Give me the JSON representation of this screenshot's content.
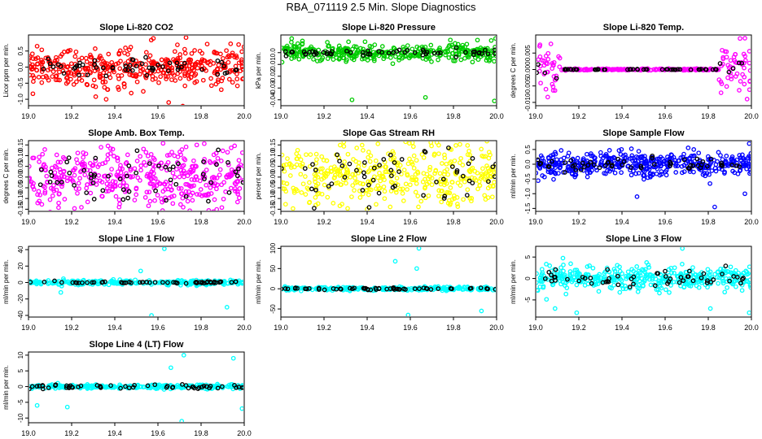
{
  "title": "RBA_071119  2.5 Min. Slope Diagnostics",
  "colors": {
    "black": "#000000",
    "red": "#ff0000",
    "green": "#00cc00",
    "magenta": "#ff00ff",
    "yellow": "#ffff00",
    "blue": "#0000ff",
    "cyan": "#00ffff"
  },
  "chart_data": [
    {
      "type": "scatter",
      "title": "Slope Li-820 CO2",
      "xlabel": "",
      "ylabel": "Licor ppm per min.",
      "xlim": [
        19.0,
        20.0
      ],
      "ylim": [
        -1.2,
        1.0
      ],
      "xticks": [
        19.0,
        19.2,
        19.4,
        19.6,
        19.8,
        20.0
      ],
      "xticklabels": [
        "19.0",
        "19.2",
        "19.4",
        "19.6",
        "19.8",
        "20.0"
      ],
      "yticks": [
        -1.0,
        -0.5,
        0.0,
        0.5
      ],
      "yticklabels": [
        "-1.0",
        "-0.5",
        "0.0",
        "0.5"
      ],
      "series": [
        {
          "name": "points",
          "color": "#ff0000",
          "spread": 0.3,
          "n": 420,
          "extreme_points": [
            {
              "x": 19.73,
              "y": 0.92
            },
            {
              "x": 19.65,
              "y": -1.1
            },
            {
              "x": 19.36,
              "y": -1.0
            },
            {
              "x": 19.04,
              "y": 0.65
            }
          ]
        },
        {
          "name": "reference",
          "color": "#000000",
          "spread": 0.13,
          "n": 55
        }
      ]
    },
    {
      "type": "scatter",
      "title": "Slope Li-820 Pressure",
      "xlabel": "",
      "ylabel": "kPa per min.",
      "xlim": [
        19.0,
        20.0
      ],
      "ylim": [
        -0.045,
        0.015
      ],
      "xticks": [
        19.0,
        19.2,
        19.4,
        19.6,
        19.8,
        20.0
      ],
      "xticklabels": [
        "19.0",
        "19.2",
        "19.4",
        "19.6",
        "19.8",
        "20.0"
      ],
      "yticks": [
        -0.04,
        -0.03,
        -0.02,
        -0.01,
        0.0
      ],
      "yticklabels": [
        "-0.04",
        "-0.03",
        "-0.02",
        "-0.01",
        "0.0"
      ],
      "series": [
        {
          "name": "points",
          "color": "#00cc00",
          "spread": 0.004,
          "n": 380,
          "extreme_points": [
            {
              "x": 19.33,
              "y": -0.04
            },
            {
              "x": 19.67,
              "y": -0.038
            },
            {
              "x": 19.99,
              "y": -0.041
            },
            {
              "x": 19.05,
              "y": 0.012
            }
          ]
        },
        {
          "name": "reference",
          "color": "#000000",
          "spread": 0.0015,
          "n": 55
        }
      ]
    },
    {
      "type": "scatter",
      "title": "Slope Li-820 Temp.",
      "xlabel": "",
      "ylabel": "degrees C per min.",
      "xlim": [
        19.0,
        20.0
      ],
      "ylim": [
        -0.011,
        0.0105
      ],
      "xticks": [
        19.0,
        19.2,
        19.4,
        19.6,
        19.8,
        20.0
      ],
      "xticklabels": [
        "19.0",
        "19.2",
        "19.4",
        "19.6",
        "19.8",
        "20.0"
      ],
      "yticks": [
        -0.01,
        -0.005,
        0.0,
        0.005
      ],
      "yticklabels": [
        "-0.010",
        "-0.005",
        "0.000",
        "0.005"
      ],
      "series": [
        {
          "name": "points",
          "color": "#ff00ff",
          "spread": 0.004,
          "n": 300,
          "extreme_points": [
            {
              "x": 19.97,
              "y": 0.0095
            },
            {
              "x": 19.98,
              "y": -0.009
            },
            {
              "x": 19.02,
              "y": 0.0075
            }
          ]
        },
        {
          "name": "reference",
          "color": "#000000",
          "spread": 0.0015,
          "n": 55
        }
      ]
    },
    {
      "type": "scatter",
      "title": "Slope Amb. Box Temp.",
      "xlabel": "",
      "ylabel": "degrees C per min.",
      "xlim": [
        19.0,
        20.0
      ],
      "ylim": [
        -0.16,
        0.17
      ],
      "xticks": [
        19.0,
        19.2,
        19.4,
        19.6,
        19.8,
        20.0
      ],
      "xticklabels": [
        "19.0",
        "19.2",
        "19.4",
        "19.6",
        "19.8",
        "20.0"
      ],
      "yticks": [
        -0.15,
        -0.1,
        -0.05,
        0.0,
        0.05,
        0.1,
        0.15
      ],
      "yticklabels": [
        "-0.15",
        "-0.10",
        "-0.05",
        "0.00",
        "0.05",
        "0.10",
        "0.15"
      ],
      "series": [
        {
          "name": "points",
          "color": "#ff00ff",
          "spread": 0.07,
          "n": 430,
          "extreme_points": [
            {
              "x": 19.78,
              "y": 0.15
            },
            {
              "x": 19.42,
              "y": -0.14
            }
          ]
        },
        {
          "name": "reference",
          "color": "#000000",
          "spread": 0.05,
          "n": 55
        }
      ]
    },
    {
      "type": "scatter",
      "title": "Slope Gas Stream RH",
      "xlabel": "",
      "ylabel": "percent per min.",
      "xlim": [
        19.0,
        20.0
      ],
      "ylim": [
        -0.16,
        0.17
      ],
      "xticks": [
        19.0,
        19.2,
        19.4,
        19.6,
        19.8,
        20.0
      ],
      "xticklabels": [
        "19.0",
        "19.2",
        "19.4",
        "19.6",
        "19.8",
        "20.0"
      ],
      "yticks": [
        -0.15,
        -0.1,
        -0.05,
        0.0,
        0.05,
        0.1,
        0.15
      ],
      "yticklabels": [
        "-0.15",
        "-0.10",
        "-0.05",
        "0.00",
        "0.05",
        "0.10",
        "0.15"
      ],
      "series": [
        {
          "name": "points",
          "color": "#ffff00",
          "spread": 0.08,
          "n": 430,
          "extreme_points": [
            {
              "x": 19.61,
              "y": 0.16
            },
            {
              "x": 19.4,
              "y": -0.15
            }
          ]
        },
        {
          "name": "reference",
          "color": "#000000",
          "spread": 0.07,
          "n": 55
        }
      ]
    },
    {
      "type": "scatter",
      "title": "Slope Sample Flow",
      "xlabel": "",
      "ylabel": "ml/min per min.",
      "xlim": [
        19.0,
        20.0
      ],
      "ylim": [
        -1.6,
        0.8
      ],
      "xticks": [
        19.0,
        19.2,
        19.4,
        19.6,
        19.8,
        20.0
      ],
      "xticklabels": [
        "19.0",
        "19.2",
        "19.4",
        "19.6",
        "19.8",
        "20.0"
      ],
      "yticks": [
        -1.5,
        -1.0,
        -0.5,
        0.0,
        0.5
      ],
      "yticklabels": [
        "-1.5",
        "-1.0",
        "-0.5",
        "0.0",
        "0.5"
      ],
      "series": [
        {
          "name": "points",
          "color": "#0000ff",
          "spread": 0.2,
          "n": 450,
          "extreme_points": [
            {
              "x": 19.83,
              "y": -1.45
            },
            {
              "x": 19.47,
              "y": -1.1
            },
            {
              "x": 19.97,
              "y": -1.0
            },
            {
              "x": 19.99,
              "y": 0.7
            }
          ]
        },
        {
          "name": "reference",
          "color": "#000000",
          "spread": 0.12,
          "n": 55
        }
      ]
    },
    {
      "type": "scatter",
      "title": "Slope Line 1 Flow",
      "xlabel": "",
      "ylabel": "ml/min per min.",
      "xlim": [
        19.0,
        20.0
      ],
      "ylim": [
        -42,
        44
      ],
      "xticks": [
        19.0,
        19.2,
        19.4,
        19.6,
        19.8,
        20.0
      ],
      "xticklabels": [
        "19.0",
        "19.2",
        "19.4",
        "19.6",
        "19.8",
        "20.0"
      ],
      "yticks": [
        -40,
        -20,
        0,
        20,
        40
      ],
      "yticklabels": [
        "-40",
        "-20",
        "0",
        "20",
        "40"
      ],
      "series": [
        {
          "name": "points",
          "color": "#00ffff",
          "spread": 1.5,
          "n": 260,
          "extreme_points": [
            {
              "x": 19.63,
              "y": 41
            },
            {
              "x": 19.57,
              "y": -40
            },
            {
              "x": 19.92,
              "y": -30
            },
            {
              "x": 19.52,
              "y": 14
            },
            {
              "x": 19.15,
              "y": -12
            }
          ]
        },
        {
          "name": "reference",
          "color": "#000000",
          "spread": 0.6,
          "n": 55
        }
      ]
    },
    {
      "type": "scatter",
      "title": "Slope Line 2 Flow",
      "xlabel": "",
      "ylabel": "ml/min per min.",
      "xlim": [
        19.0,
        20.0
      ],
      "ylim": [
        -70,
        105
      ],
      "xticks": [
        19.0,
        19.2,
        19.4,
        19.6,
        19.8,
        20.0
      ],
      "xticklabels": [
        "19.0",
        "19.2",
        "19.4",
        "19.6",
        "19.8",
        "20.0"
      ],
      "yticks": [
        -50,
        0,
        50,
        100
      ],
      "yticklabels": [
        "-50",
        "0",
        "50",
        "100"
      ],
      "series": [
        {
          "name": "points",
          "color": "#00ffff",
          "spread": 2.5,
          "n": 260,
          "extreme_points": [
            {
              "x": 19.64,
              "y": 100
            },
            {
              "x": 19.53,
              "y": 68
            },
            {
              "x": 19.63,
              "y": 50
            },
            {
              "x": 19.59,
              "y": -65
            },
            {
              "x": 19.93,
              "y": -55
            }
          ]
        },
        {
          "name": "reference",
          "color": "#000000",
          "spread": 1.2,
          "n": 55
        }
      ]
    },
    {
      "type": "scatter",
      "title": "Slope Line 3 Flow",
      "xlabel": "",
      "ylabel": "ml/min per min.",
      "xlim": [
        19.0,
        20.0
      ],
      "ylim": [
        -9,
        7.5
      ],
      "xticks": [
        19.0,
        19.2,
        19.4,
        19.6,
        19.8,
        20.0
      ],
      "xticklabels": [
        "19.0",
        "19.2",
        "19.4",
        "19.6",
        "19.8",
        "20.0"
      ],
      "yticks": [
        -5,
        0,
        5
      ],
      "yticklabels": [
        "-5",
        "0",
        "5"
      ],
      "series": [
        {
          "name": "points",
          "color": "#00ffff",
          "spread": 1.4,
          "n": 420,
          "extreme_points": [
            {
              "x": 19.68,
              "y": 7
            },
            {
              "x": 19.09,
              "y": -7
            },
            {
              "x": 19.19,
              "y": -8
            },
            {
              "x": 19.81,
              "y": -7
            },
            {
              "x": 19.99,
              "y": -8
            }
          ]
        },
        {
          "name": "reference",
          "color": "#000000",
          "spread": 1.0,
          "n": 55
        }
      ]
    },
    {
      "type": "scatter",
      "title": "Slope Line 4 (LT) Flow",
      "xlabel": "",
      "ylabel": "ml/min per min.",
      "xlim": [
        19.0,
        20.0
      ],
      "ylim": [
        -11.5,
        11
      ],
      "xticks": [
        19.0,
        19.2,
        19.4,
        19.6,
        19.8,
        20.0
      ],
      "xticklabels": [
        "19.0",
        "19.2",
        "19.4",
        "19.6",
        "19.8",
        "20.0"
      ],
      "yticks": [
        -10,
        -5,
        0,
        5,
        10
      ],
      "yticklabels": [
        "-10",
        "-5",
        "0",
        "5",
        "10"
      ],
      "series": [
        {
          "name": "points",
          "color": "#00ffff",
          "spread": 0.3,
          "n": 280,
          "extreme_points": [
            {
              "x": 19.71,
              "y": -11
            },
            {
              "x": 19.95,
              "y": 9
            },
            {
              "x": 19.04,
              "y": -6
            },
            {
              "x": 19.18,
              "y": -6.5
            },
            {
              "x": 19.99,
              "y": -7
            },
            {
              "x": 19.72,
              "y": 10
            },
            {
              "x": 19.66,
              "y": 6
            }
          ]
        },
        {
          "name": "reference",
          "color": "#000000",
          "spread": 0.3,
          "n": 55
        }
      ]
    }
  ]
}
